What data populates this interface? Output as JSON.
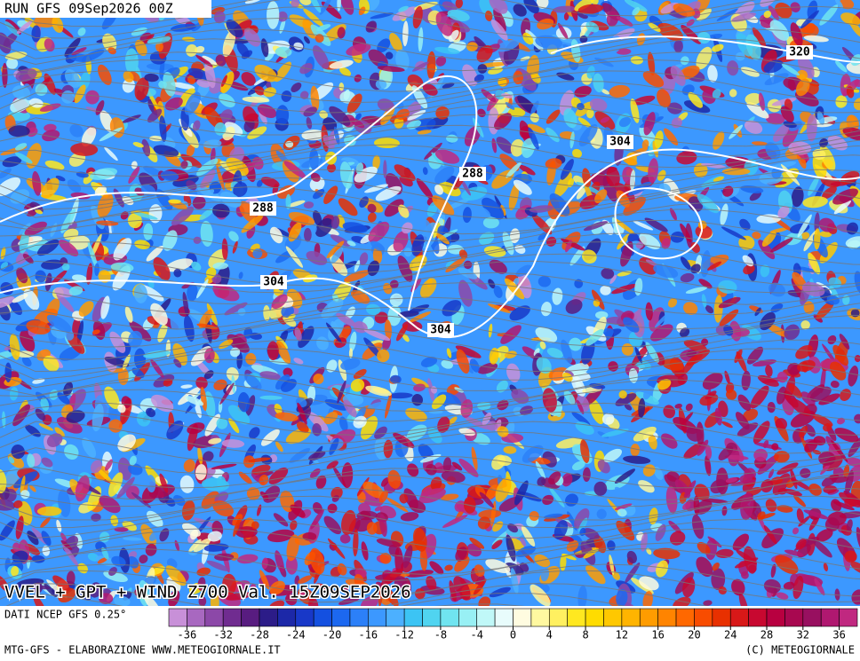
{
  "header": {
    "run": "RUN GFS 09Sep2026 00Z"
  },
  "map": {
    "title": "VVEL + GPT + WIND Z700 Val. 15Z09SEP2026",
    "contour_labels": [
      "320",
      "304",
      "288",
      "288",
      "304",
      "304"
    ]
  },
  "colorbar": {
    "source": "DATI NCEP GFS 0.25°",
    "bins": [
      -38,
      -36,
      -34,
      -32,
      -30,
      -28,
      -26,
      -24,
      -22,
      -20,
      -18,
      -16,
      -14,
      -12,
      -10,
      -8,
      -6,
      -4,
      -2,
      0,
      2,
      4,
      6,
      8,
      10,
      12,
      14,
      16,
      18,
      20,
      22,
      24,
      26,
      28,
      30,
      32,
      34,
      36,
      38
    ],
    "colors": [
      "#c890d8",
      "#a868c0",
      "#8c48a8",
      "#702c90",
      "#581c80",
      "#2c1c88",
      "#1c28a8",
      "#1838c8",
      "#1450e0",
      "#1c68f0",
      "#2c80f8",
      "#3c98ff",
      "#4cb0ff",
      "#3cc4f4",
      "#50d4f0",
      "#70e4f0",
      "#98f0f4",
      "#c0f8f8",
      "#e8fcfc",
      "#fffce0",
      "#fff8a0",
      "#fff060",
      "#ffe820",
      "#ffdc00",
      "#ffc800",
      "#ffb400",
      "#ff9c00",
      "#ff8400",
      "#ff6800",
      "#f84c00",
      "#e83000",
      "#d81818",
      "#c80830",
      "#b80040",
      "#a80850",
      "#981060",
      "#b01870",
      "#c02880"
    ],
    "ticks": [
      -36,
      -32,
      -28,
      -24,
      -20,
      -16,
      -12,
      -8,
      -4,
      0,
      4,
      8,
      12,
      16,
      20,
      24,
      28,
      32,
      36
    ]
  },
  "footer": {
    "left": "MTG-GFS - ELABORAZIONE WWW.METEOGIORNALE.IT",
    "right": "(C) METEOGIORNALE"
  }
}
